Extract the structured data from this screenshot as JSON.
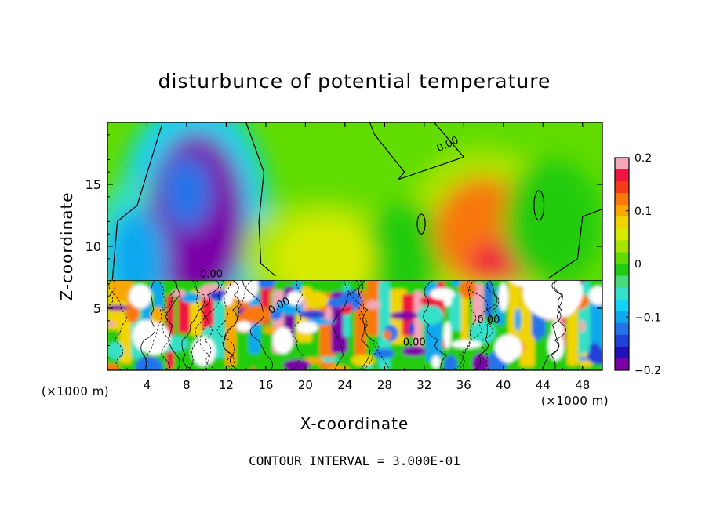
{
  "chart_data": {
    "type": "heatmap",
    "title": "disturbunce of potential temperature",
    "xlabel": "X-coordinate",
    "ylabel": "Z-coordinate",
    "x_unit": "(×1000 m)",
    "x_unit_right": "(×1000 m)",
    "xlim": [
      0,
      50
    ],
    "ylim": [
      0,
      20
    ],
    "x_ticks": [
      4,
      8,
      12,
      16,
      20,
      24,
      28,
      32,
      36,
      40,
      44,
      48
    ],
    "y_ticks": [
      5,
      10,
      15
    ],
    "colorbar": {
      "min": -0.2,
      "max": 0.2,
      "tick_values": [
        0.2,
        0.1,
        0,
        -0.1,
        -0.2
      ],
      "tick_labels": [
        "0.2",
        "0.1",
        "0",
        "−0.1",
        "−0.2"
      ],
      "colors": [
        "#f4a6b8",
        "#f01440",
        "#f43c18",
        "#f8780a",
        "#f8a800",
        "#f0d400",
        "#d8ec00",
        "#a8e400",
        "#60dc00",
        "#22cc10",
        "#48dc78",
        "#34e0c8",
        "#10d4f0",
        "#10a8f0",
        "#2474e8",
        "#2040d8",
        "#2010b8",
        "#7c00a8"
      ]
    },
    "contour_labels": [
      "0.00",
      "0.00",
      "0.00",
      "0.00",
      "0.00"
    ],
    "footer": "CONTOUR INTERVAL = 3.000E-01",
    "features": [
      {
        "x": 9.5,
        "z": 9.5,
        "value": -0.18
      },
      {
        "x": 8.0,
        "z": 14.0,
        "value": -0.12
      },
      {
        "x": 38.5,
        "z": 11.0,
        "value": 0.12
      },
      {
        "x": 40.0,
        "z": 8.5,
        "value": 0.16
      },
      {
        "x": 3.0,
        "z": 9.0,
        "value": -0.1
      },
      {
        "x": 22.0,
        "z": 9.0,
        "value": 0.06
      },
      {
        "x": 45.0,
        "z": 12.0,
        "value": -0.02
      }
    ]
  }
}
